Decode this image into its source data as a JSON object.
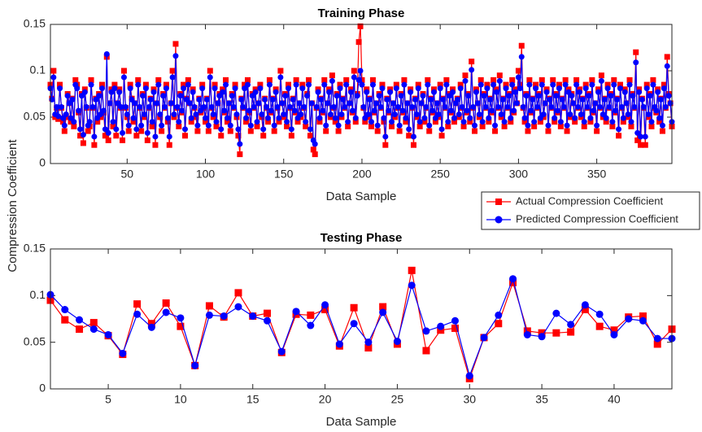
{
  "chart_data": [
    {
      "type": "line",
      "title": "Training Phase",
      "xlabel": "Data Sample",
      "ylabel": "Compression Coefficient",
      "xlim": [
        1,
        398
      ],
      "xticks": [
        50,
        100,
        150,
        200,
        250,
        300,
        350
      ],
      "ylim": [
        0,
        0.15
      ],
      "yticks": [
        0,
        0.05,
        0.1,
        0.15
      ],
      "legend": "outside-right",
      "series": [
        {
          "name": "Actual Compression Coefficient",
          "color": "#ff0000",
          "marker": "square",
          "values": [
            0.085,
            0.07,
            0.1,
            0.05,
            0.06,
            0.048,
            0.085,
            0.06,
            0.045,
            0.035,
            0.05,
            0.075,
            0.065,
            0.045,
            0.07,
            0.04,
            0.09,
            0.085,
            0.055,
            0.03,
            0.075,
            0.022,
            0.08,
            0.06,
            0.035,
            0.04,
            0.09,
            0.06,
            0.02,
            0.07,
            0.045,
            0.075,
            0.05,
            0.085,
            0.055,
            0.03,
            0.115,
            0.025,
            0.065,
            0.08,
            0.04,
            0.085,
            0.03,
            0.065,
            0.08,
            0.06,
            0.025,
            0.1,
            0.06,
            0.05,
            0.035,
            0.085,
            0.07,
            0.045,
            0.065,
            0.03,
            0.09,
            0.06,
            0.035,
            0.075,
            0.05,
            0.085,
            0.025,
            0.06,
            0.07,
            0.04,
            0.08,
            0.02,
            0.065,
            0.09,
            0.05,
            0.035,
            0.075,
            0.06,
            0.085,
            0.045,
            0.02,
            0.065,
            0.1,
            0.05,
            0.129,
            0.06,
            0.04,
            0.075,
            0.055,
            0.085,
            0.03,
            0.07,
            0.09,
            0.065,
            0.045,
            0.08,
            0.06,
            0.05,
            0.035,
            0.07,
            0.055,
            0.085,
            0.06,
            0.045,
            0.07,
            0.035,
            0.1,
            0.06,
            0.05,
            0.085,
            0.04,
            0.065,
            0.075,
            0.03,
            0.08,
            0.055,
            0.09,
            0.045,
            0.065,
            0.035,
            0.075,
            0.06,
            0.085,
            0.05,
            0.03,
            0.01,
            0.07,
            0.06,
            0.085,
            0.045,
            0.09,
            0.055,
            0.035,
            0.075,
            0.06,
            0.08,
            0.04,
            0.065,
            0.085,
            0.05,
            0.03,
            0.07,
            0.06,
            0.045,
            0.09,
            0.055,
            0.07,
            0.035,
            0.08,
            0.06,
            0.045,
            0.1,
            0.065,
            0.05,
            0.075,
            0.04,
            0.085,
            0.06,
            0.03,
            0.07,
            0.055,
            0.09,
            0.045,
            0.065,
            0.05,
            0.085,
            0.06,
            0.04,
            0.075,
            0.09,
            0.03,
            0.065,
            0.015,
            0.01,
            0.06,
            0.08,
            0.045,
            0.07,
            0.055,
            0.09,
            0.035,
            0.065,
            0.08,
            0.05,
            0.095,
            0.06,
            0.045,
            0.075,
            0.035,
            0.085,
            0.05,
            0.07,
            0.06,
            0.09,
            0.04,
            0.065,
            0.08,
            0.055,
            0.1,
            0.045,
            0.075,
            0.131,
            0.148,
            0.09,
            0.06,
            0.045,
            0.08,
            0.05,
            0.07,
            0.04,
            0.09,
            0.055,
            0.065,
            0.035,
            0.075,
            0.06,
            0.085,
            0.045,
            0.02,
            0.07,
            0.055,
            0.08,
            0.04,
            0.065,
            0.05,
            0.085,
            0.06,
            0.035,
            0.075,
            0.055,
            0.09,
            0.045,
            0.065,
            0.03,
            0.08,
            0.06,
            0.02,
            0.07,
            0.05,
            0.085,
            0.04,
            0.065,
            0.075,
            0.045,
            0.06,
            0.09,
            0.035,
            0.07,
            0.055,
            0.08,
            0.045,
            0.065,
            0.05,
            0.085,
            0.03,
            0.07,
            0.06,
            0.09,
            0.04,
            0.075,
            0.055,
            0.08,
            0.045,
            0.065,
            0.07,
            0.05,
            0.085,
            0.06,
            0.04,
            0.095,
            0.055,
            0.075,
            0.045,
            0.11,
            0.06,
            0.035,
            0.08,
            0.065,
            0.05,
            0.09,
            0.04,
            0.075,
            0.06,
            0.085,
            0.045,
            0.07,
            0.055,
            0.09,
            0.035,
            0.08,
            0.06,
            0.095,
            0.05,
            0.07,
            0.04,
            0.085,
            0.06,
            0.075,
            0.045,
            0.09,
            0.055,
            0.08,
            0.065,
            0.1,
            0.085,
            0.127,
            0.06,
            0.045,
            0.075,
            0.035,
            0.09,
            0.055,
            0.07,
            0.04,
            0.085,
            0.06,
            0.075,
            0.045,
            0.09,
            0.05,
            0.065,
            0.08,
            0.035,
            0.07,
            0.06,
            0.09,
            0.045,
            0.075,
            0.055,
            0.085,
            0.04,
            0.07,
            0.06,
            0.09,
            0.035,
            0.08,
            0.05,
            0.075,
            0.065,
            0.045,
            0.09,
            0.06,
            0.08,
            0.05,
            0.07,
            0.04,
            0.085,
            0.06,
            0.075,
            0.045,
            0.09,
            0.055,
            0.065,
            0.035,
            0.08,
            0.06,
            0.095,
            0.05,
            0.07,
            0.045,
            0.085,
            0.06,
            0.075,
            0.04,
            0.09,
            0.055,
            0.07,
            0.03,
            0.085,
            0.06,
            0.045,
            0.08,
            0.065,
            0.05,
            0.09,
            0.04,
            0.075,
            0.06,
            0.12,
            0.025,
            0.08,
            0.02,
            0.07,
            0.06,
            0.02,
            0.085,
            0.05,
            0.075,
            0.04,
            0.09,
            0.06,
            0.055,
            0.08,
            0.045,
            0.07,
            0.035,
            0.085,
            0.06,
            0.115,
            0.075,
            0.065,
            0.04
          ]
        },
        {
          "name": "Predicted Compression Coefficient",
          "color": "#0000ff",
          "marker": "circle",
          "values": [
            0.081,
            0.069,
            0.093,
            0.053,
            0.061,
            0.051,
            0.081,
            0.061,
            0.049,
            0.041,
            0.053,
            0.073,
            0.065,
            0.049,
            0.069,
            0.045,
            0.085,
            0.081,
            0.057,
            0.037,
            0.073,
            0.031,
            0.077,
            0.061,
            0.041,
            0.045,
            0.085,
            0.061,
            0.029,
            0.069,
            0.049,
            0.073,
            0.053,
            0.081,
            0.057,
            0.037,
            0.118,
            0.033,
            0.065,
            0.077,
            0.045,
            0.081,
            0.037,
            0.065,
            0.077,
            0.061,
            0.033,
            0.093,
            0.061,
            0.053,
            0.041,
            0.081,
            0.069,
            0.049,
            0.065,
            0.037,
            0.085,
            0.061,
            0.041,
            0.073,
            0.053,
            0.081,
            0.033,
            0.061,
            0.069,
            0.045,
            0.077,
            0.029,
            0.065,
            0.085,
            0.053,
            0.041,
            0.073,
            0.061,
            0.081,
            0.049,
            0.029,
            0.065,
            0.093,
            0.053,
            0.116,
            0.061,
            0.045,
            0.073,
            0.057,
            0.081,
            0.037,
            0.069,
            0.085,
            0.065,
            0.049,
            0.077,
            0.061,
            0.053,
            0.041,
            0.069,
            0.057,
            0.081,
            0.061,
            0.049,
            0.069,
            0.041,
            0.093,
            0.061,
            0.053,
            0.081,
            0.045,
            0.065,
            0.073,
            0.037,
            0.077,
            0.057,
            0.085,
            0.049,
            0.065,
            0.041,
            0.073,
            0.061,
            0.081,
            0.053,
            0.037,
            0.021,
            0.069,
            0.061,
            0.081,
            0.049,
            0.085,
            0.057,
            0.041,
            0.073,
            0.061,
            0.077,
            0.045,
            0.065,
            0.081,
            0.053,
            0.037,
            0.069,
            0.061,
            0.049,
            0.085,
            0.057,
            0.069,
            0.041,
            0.077,
            0.061,
            0.049,
            0.093,
            0.065,
            0.053,
            0.073,
            0.045,
            0.081,
            0.061,
            0.037,
            0.069,
            0.057,
            0.085,
            0.049,
            0.065,
            0.053,
            0.081,
            0.061,
            0.045,
            0.073,
            0.085,
            0.037,
            0.065,
            0.025,
            0.021,
            0.061,
            0.077,
            0.049,
            0.069,
            0.057,
            0.085,
            0.041,
            0.065,
            0.077,
            0.053,
            0.089,
            0.061,
            0.049,
            0.073,
            0.041,
            0.081,
            0.053,
            0.069,
            0.061,
            0.085,
            0.045,
            0.065,
            0.077,
            0.057,
            0.093,
            0.049,
            0.073,
            0.09,
            0.1,
            0.085,
            0.061,
            0.049,
            0.077,
            0.053,
            0.069,
            0.045,
            0.085,
            0.057,
            0.065,
            0.041,
            0.073,
            0.061,
            0.081,
            0.049,
            0.029,
            0.069,
            0.057,
            0.077,
            0.045,
            0.065,
            0.053,
            0.081,
            0.061,
            0.041,
            0.073,
            0.057,
            0.085,
            0.049,
            0.065,
            0.037,
            0.077,
            0.061,
            0.029,
            0.069,
            0.053,
            0.081,
            0.045,
            0.065,
            0.073,
            0.049,
            0.061,
            0.085,
            0.041,
            0.069,
            0.057,
            0.077,
            0.049,
            0.065,
            0.053,
            0.081,
            0.037,
            0.069,
            0.061,
            0.085,
            0.045,
            0.073,
            0.057,
            0.077,
            0.049,
            0.065,
            0.069,
            0.053,
            0.081,
            0.061,
            0.045,
            0.089,
            0.057,
            0.073,
            0.049,
            0.101,
            0.061,
            0.041,
            0.077,
            0.065,
            0.053,
            0.085,
            0.045,
            0.073,
            0.061,
            0.081,
            0.049,
            0.069,
            0.057,
            0.085,
            0.041,
            0.077,
            0.061,
            0.089,
            0.053,
            0.069,
            0.045,
            0.081,
            0.061,
            0.073,
            0.049,
            0.085,
            0.057,
            0.077,
            0.065,
            0.093,
            0.081,
            0.115,
            0.061,
            0.049,
            0.073,
            0.041,
            0.085,
            0.057,
            0.069,
            0.045,
            0.081,
            0.061,
            0.073,
            0.049,
            0.085,
            0.053,
            0.065,
            0.077,
            0.041,
            0.069,
            0.061,
            0.085,
            0.049,
            0.073,
            0.057,
            0.081,
            0.045,
            0.069,
            0.061,
            0.085,
            0.041,
            0.077,
            0.053,
            0.073,
            0.065,
            0.049,
            0.085,
            0.061,
            0.077,
            0.053,
            0.069,
            0.045,
            0.081,
            0.061,
            0.073,
            0.049,
            0.085,
            0.057,
            0.065,
            0.041,
            0.077,
            0.061,
            0.089,
            0.053,
            0.069,
            0.049,
            0.081,
            0.061,
            0.073,
            0.045,
            0.085,
            0.057,
            0.069,
            0.037,
            0.081,
            0.061,
            0.049,
            0.077,
            0.065,
            0.053,
            0.085,
            0.045,
            0.073,
            0.061,
            0.109,
            0.033,
            0.077,
            0.029,
            0.069,
            0.061,
            0.029,
            0.081,
            0.053,
            0.073,
            0.045,
            0.085,
            0.061,
            0.057,
            0.077,
            0.049,
            0.069,
            0.041,
            0.081,
            0.061,
            0.105,
            0.073,
            0.065,
            0.045
          ]
        }
      ]
    },
    {
      "type": "line",
      "title": "Testing Phase",
      "xlabel": "Data Sample",
      "xlim": [
        1,
        44
      ],
      "xticks": [
        5,
        10,
        15,
        20,
        25,
        30,
        35,
        40
      ],
      "ylim": [
        0,
        0.15
      ],
      "yticks": [
        0,
        0.05,
        0.1,
        0.15
      ],
      "series": [
        {
          "color": "#ff0000",
          "marker": "square",
          "values": [
            0.095,
            0.074,
            0.064,
            0.071,
            0.057,
            0.037,
            0.091,
            0.07,
            0.092,
            0.067,
            0.025,
            0.089,
            0.077,
            0.103,
            0.078,
            0.081,
            0.039,
            0.08,
            0.079,
            0.085,
            0.046,
            0.087,
            0.044,
            0.088,
            0.048,
            0.127,
            0.041,
            0.063,
            0.065,
            0.011,
            0.055,
            0.07,
            0.114,
            0.062,
            0.06,
            0.06,
            0.061,
            0.085,
            0.067,
            0.063,
            0.077,
            0.078,
            0.048,
            0.064
          ]
        },
        {
          "color": "#0000ff",
          "marker": "circle",
          "values": [
            0.101,
            0.085,
            0.074,
            0.064,
            0.058,
            0.038,
            0.08,
            0.066,
            0.082,
            0.076,
            0.025,
            0.079,
            0.078,
            0.088,
            0.078,
            0.073,
            0.04,
            0.083,
            0.068,
            0.09,
            0.048,
            0.07,
            0.05,
            0.082,
            0.051,
            0.111,
            0.062,
            0.067,
            0.073,
            0.014,
            0.055,
            0.079,
            0.118,
            0.058,
            0.056,
            0.081,
            0.069,
            0.09,
            0.08,
            0.058,
            0.075,
            0.073,
            0.054,
            0.054
          ]
        }
      ]
    }
  ]
}
